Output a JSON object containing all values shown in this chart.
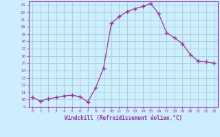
{
  "x": [
    0,
    1,
    2,
    3,
    4,
    5,
    6,
    7,
    8,
    9,
    10,
    11,
    12,
    13,
    14,
    15,
    16,
    17,
    18,
    19,
    20,
    21,
    22,
    23
  ],
  "y": [
    10.3,
    9.8,
    10.1,
    10.3,
    10.5,
    10.6,
    10.4,
    9.7,
    11.6,
    14.3,
    20.5,
    21.4,
    22.1,
    22.5,
    22.8,
    23.2,
    21.8,
    19.2,
    18.5,
    17.7,
    16.2,
    15.3,
    15.2,
    15.0
  ],
  "line_color": "#993399",
  "marker": "+",
  "marker_size": 4,
  "bg_color": "#cceeff",
  "grid_color": "#aacccc",
  "xlabel": "Windchill (Refroidissement éolien,°C)",
  "ylabel_ticks": [
    9,
    10,
    11,
    12,
    13,
    14,
    15,
    16,
    17,
    18,
    19,
    20,
    21,
    22,
    23
  ],
  "xlim": [
    -0.5,
    23.5
  ],
  "ylim": [
    9,
    23.5
  ],
  "axis_label_color": "#993399",
  "tick_color": "#993399"
}
